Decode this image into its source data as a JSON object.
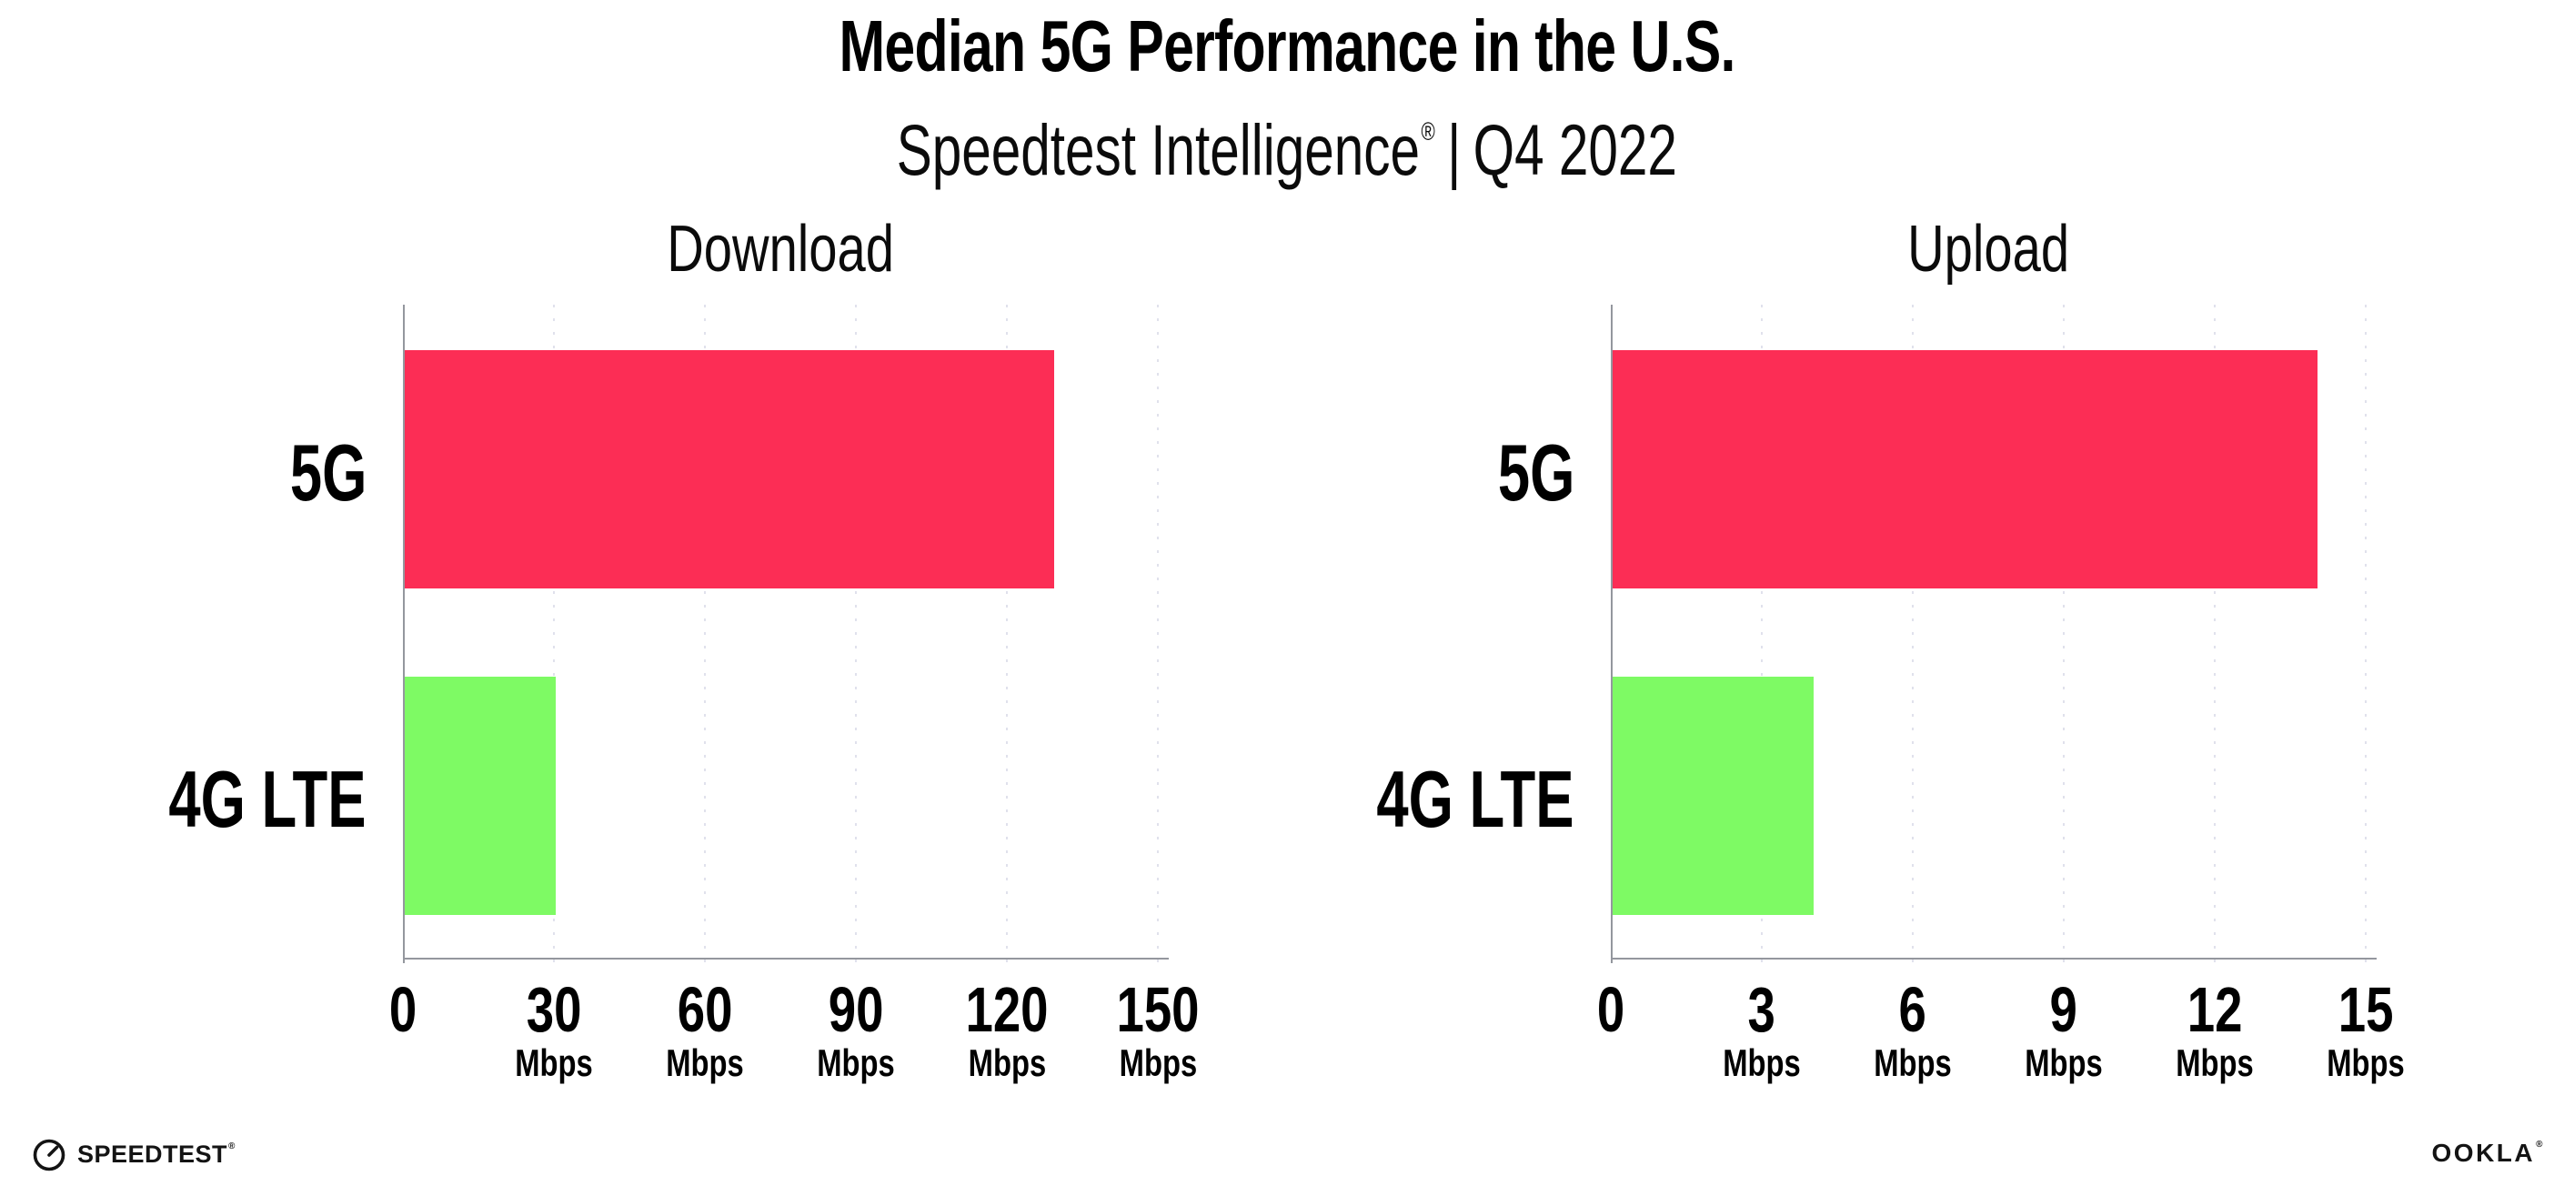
{
  "header": {
    "title": "Median 5G Performance in the U.S.",
    "subtitle": {
      "brand": "Speedtest Intelligence",
      "registered_mark": "®",
      "separator": "|",
      "period": "Q4 2022"
    }
  },
  "chart_data": [
    {
      "type": "bar",
      "orientation": "horizontal",
      "title": "Download",
      "categories": [
        "5G",
        "4G LTE"
      ],
      "values": [
        129,
        30
      ],
      "unit": "Mbps",
      "xlim": [
        0,
        150
      ],
      "ticks": [
        0,
        30,
        60,
        90,
        120,
        150
      ],
      "bar_colors": [
        "#FC2D55",
        "#7EFA64"
      ],
      "grid": "vertical-dotted",
      "legend": "none"
    },
    {
      "type": "bar",
      "orientation": "horizontal",
      "title": "Upload",
      "categories": [
        "5G",
        "4G LTE"
      ],
      "values": [
        14,
        4
      ],
      "unit": "Mbps",
      "xlim": [
        0,
        15
      ],
      "ticks": [
        0,
        3,
        6,
        9,
        12,
        15
      ],
      "bar_colors": [
        "#FC2D55",
        "#7EFA64"
      ],
      "grid": "vertical-dotted",
      "legend": "none"
    }
  ],
  "footer": {
    "speedtest_wordmark": "SPEEDTEST",
    "speedtest_registered_mark": "®",
    "ookla_wordmark": "OOKLA",
    "ookla_registered_mark": "®"
  },
  "colors": {
    "bar_5g": "#FC2D55",
    "bar_4g_lte": "#7EFA64",
    "axis_line": "#94979e",
    "gridline_dots": "#e0e1ec",
    "text": "#000000",
    "logo_text": "#141414"
  }
}
